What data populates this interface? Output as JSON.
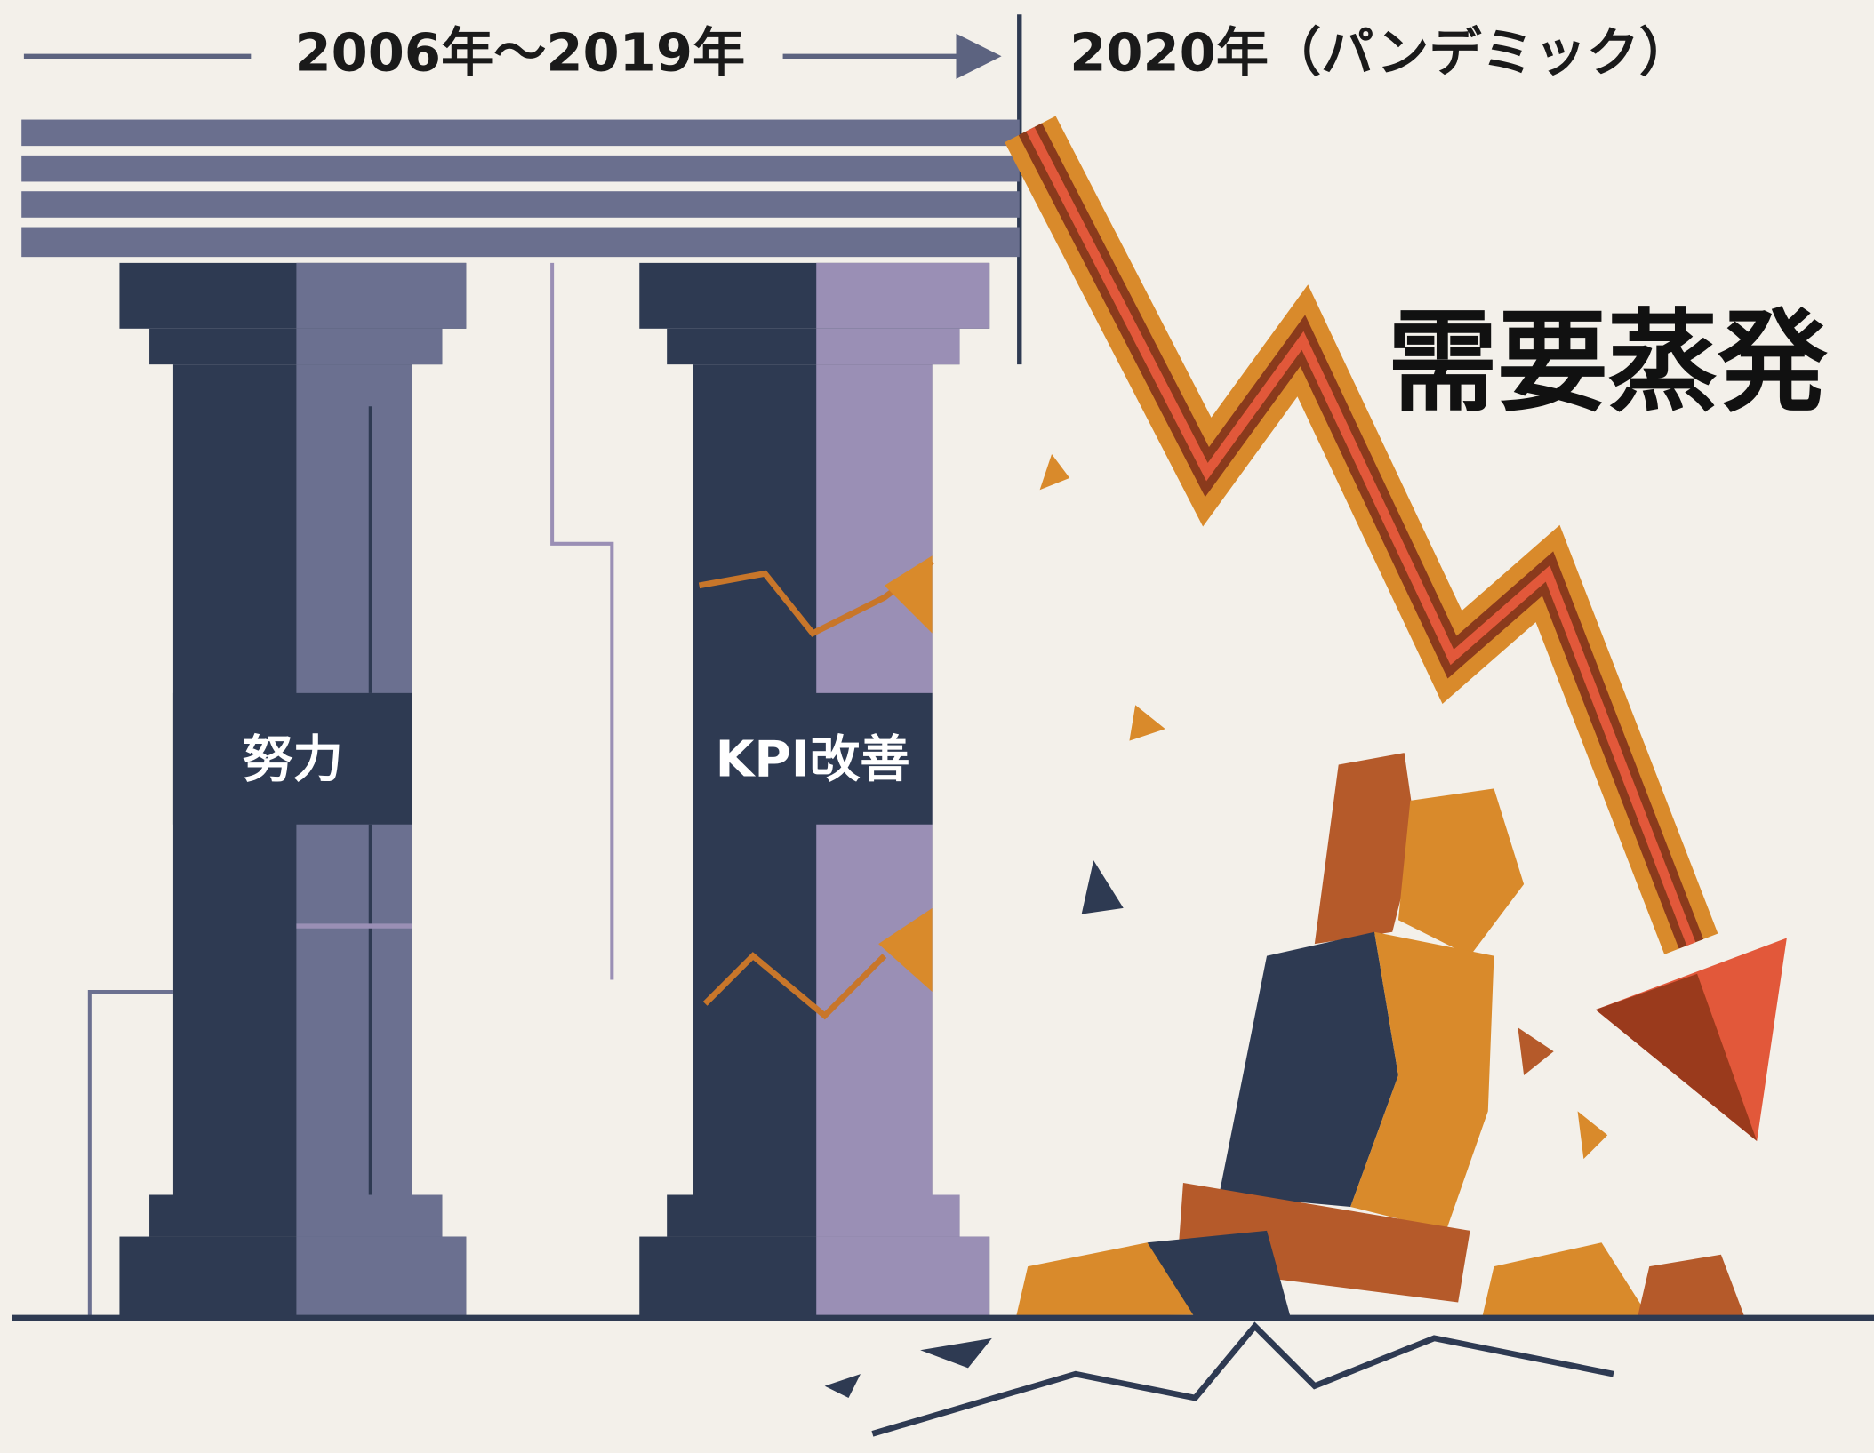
{
  "header": {
    "period_before": "2006年～2019年",
    "period_after": "2020年（パンデミック）"
  },
  "headline": "需要蒸発",
  "pillars": [
    {
      "label": "努力"
    },
    {
      "label": "KPI改善"
    }
  ]
}
